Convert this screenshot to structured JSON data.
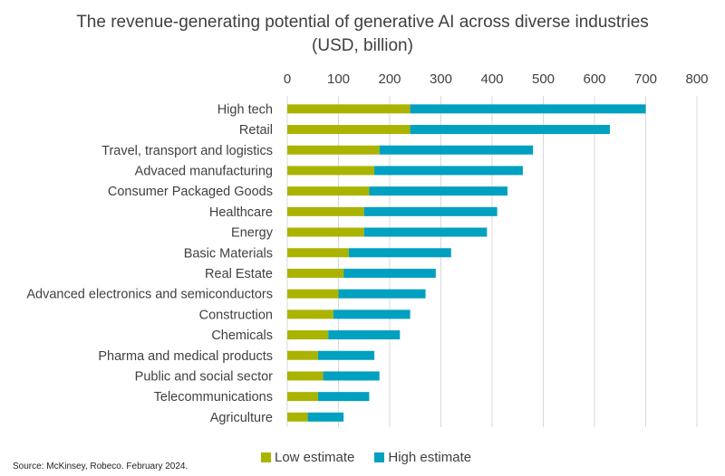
{
  "chart_data": {
    "type": "bar",
    "orientation": "horizontal",
    "stacked": true,
    "title": "The revenue-generating potential of generative AI across diverse industries",
    "subtitle": "(USD, billion)",
    "xlabel": "",
    "ylabel": "",
    "xlim": [
      0,
      800
    ],
    "xticks": [
      0,
      100,
      200,
      300,
      400,
      500,
      600,
      700,
      800
    ],
    "xtick_labels": [
      "0",
      "100",
      "200",
      "300",
      "400",
      "500",
      "600",
      "700",
      "800"
    ],
    "xaxis_position": "top",
    "grid": true,
    "legend_position": "bottom",
    "categories": [
      "High tech",
      "Retail",
      "Travel, transport and logistics",
      "Advaced manufacturing",
      "Consumer Packaged Goods",
      "Healthcare",
      "Energy",
      "Basic Materials",
      "Real Estate",
      "Advanced electronics and semiconductors",
      "Construction",
      "Chemicals",
      "Pharma and medical products",
      "Public and social sector",
      "Telecommunications",
      "Agriculture"
    ],
    "series": [
      {
        "name": "Low estimate",
        "color": "#aab400",
        "values": [
          240,
          240,
          180,
          170,
          160,
          150,
          150,
          120,
          110,
          100,
          90,
          80,
          60,
          70,
          60,
          40
        ]
      },
      {
        "name": "High estimate",
        "color": "#00a0c0",
        "values": [
          700,
          630,
          480,
          460,
          430,
          410,
          390,
          320,
          290,
          270,
          240,
          220,
          170,
          180,
          160,
          110
        ],
        "note": "High estimate bar spans from low estimate to high estimate"
      }
    ]
  },
  "legend": {
    "items": [
      {
        "label": "Low estimate",
        "color": "#aab400"
      },
      {
        "label": "High estimate",
        "color": "#00a0c0"
      }
    ]
  },
  "source": "Source: McKinsey, Robeco. February 2024."
}
